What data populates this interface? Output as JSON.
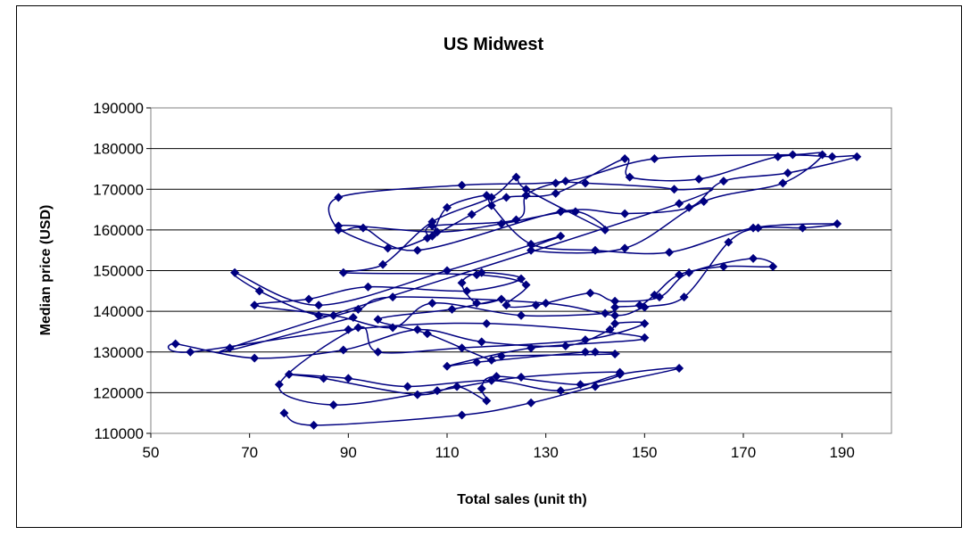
{
  "chart_data": {
    "type": "scatter",
    "title": "US Midwest",
    "xlabel": "Total sales (unit th)",
    "ylabel": "Median price (USD)",
    "xlim": [
      50,
      200
    ],
    "ylim": [
      110000,
      190000
    ],
    "x_ticks": [
      "50",
      "70",
      "90",
      "110",
      "130",
      "150",
      "170",
      "190"
    ],
    "y_ticks": [
      "110000",
      "120000",
      "130000",
      "140000",
      "150000",
      "160000",
      "170000",
      "180000",
      "190000"
    ],
    "grid": "horizontal",
    "legend": "none",
    "connected": true,
    "series": [
      {
        "color": "#000080",
        "marker": "diamond",
        "points": [
          [
            77,
            115000
          ],
          [
            83,
            112000
          ],
          [
            113,
            114500
          ],
          [
            127,
            117500
          ],
          [
            140,
            121500
          ],
          [
            157,
            126000
          ],
          [
            145,
            124500
          ],
          [
            133,
            120500
          ],
          [
            119,
            123000
          ],
          [
            102,
            121500
          ],
          [
            90,
            123500
          ],
          [
            78,
            124500
          ],
          [
            85,
            123500
          ],
          [
            104,
            119500
          ],
          [
            112,
            121500
          ],
          [
            118,
            118000
          ],
          [
            117,
            121000
          ],
          [
            120,
            124000
          ],
          [
            137,
            122000
          ],
          [
            145,
            125000
          ],
          [
            125,
            123800
          ],
          [
            108,
            120500
          ],
          [
            87,
            117000
          ],
          [
            76,
            122000
          ],
          [
            92,
            136000
          ],
          [
            96,
            130000
          ],
          [
            113,
            131000
          ],
          [
            138,
            133000
          ],
          [
            150,
            137000
          ],
          [
            144,
            137000
          ],
          [
            143,
            135500
          ],
          [
            134,
            131500
          ],
          [
            117,
            132500
          ],
          [
            104,
            135500
          ],
          [
            89,
            130500
          ],
          [
            71,
            128500
          ],
          [
            55,
            132000
          ],
          [
            58,
            130000
          ],
          [
            90,
            135500
          ],
          [
            118,
            137000
          ],
          [
            150,
            133500
          ],
          [
            127,
            131000
          ],
          [
            110,
            126500
          ],
          [
            116,
            127500
          ],
          [
            138,
            130000
          ],
          [
            140,
            130000
          ],
          [
            144,
            129500
          ],
          [
            121,
            129000
          ],
          [
            119,
            128000
          ],
          [
            106,
            134500
          ],
          [
            96,
            138000
          ],
          [
            111,
            140500
          ],
          [
            121,
            143000
          ],
          [
            116,
            142000
          ],
          [
            113,
            147000
          ],
          [
            117,
            149500
          ],
          [
            125,
            148000
          ],
          [
            114,
            145000
          ],
          [
            94,
            146000
          ],
          [
            82,
            143000
          ],
          [
            71,
            141500
          ],
          [
            87,
            139000
          ],
          [
            99,
            136000
          ],
          [
            107,
            142000
          ],
          [
            125,
            139000
          ],
          [
            142,
            139500
          ],
          [
            144,
            141000
          ],
          [
            149,
            141500
          ],
          [
            152,
            144000
          ],
          [
            157,
            149000
          ],
          [
            166,
            151000
          ],
          [
            176,
            151000
          ],
          [
            172,
            153000
          ],
          [
            159,
            149500
          ],
          [
            153,
            143500
          ],
          [
            144,
            142500
          ],
          [
            139,
            144500
          ],
          [
            128,
            141500
          ],
          [
            122,
            141500
          ],
          [
            126,
            146500
          ],
          [
            116,
            149000
          ],
          [
            89,
            149500
          ],
          [
            97,
            151500
          ],
          [
            107,
            162000
          ],
          [
            119,
            168000
          ],
          [
            124,
            173000
          ],
          [
            126,
            170000
          ],
          [
            142,
            160000
          ],
          [
            136,
            164500
          ],
          [
            121,
            161500
          ],
          [
            108,
            159500
          ],
          [
            88,
            161000
          ],
          [
            98,
            155500
          ],
          [
            106,
            158000
          ],
          [
            115,
            163800
          ],
          [
            122,
            168000
          ],
          [
            132,
            169000
          ],
          [
            146,
            177500
          ],
          [
            147,
            173000
          ],
          [
            161,
            172500
          ],
          [
            177,
            178000
          ],
          [
            188,
            178000
          ],
          [
            193,
            178000
          ],
          [
            179,
            174000
          ],
          [
            166,
            172000
          ],
          [
            159,
            165500
          ],
          [
            146,
            164000
          ],
          [
            133,
            164500
          ],
          [
            104,
            155000
          ],
          [
            93,
            160500
          ],
          [
            88,
            160000
          ],
          [
            88,
            168000
          ],
          [
            113,
            171000
          ],
          [
            134,
            172000
          ],
          [
            152,
            177500
          ],
          [
            180,
            178500
          ],
          [
            186,
            178500
          ],
          [
            178,
            171500
          ],
          [
            162,
            167000
          ],
          [
            146,
            155500
          ],
          [
            127,
            155000
          ],
          [
            133,
            158500
          ],
          [
            110,
            150000
          ],
          [
            84,
            141500
          ],
          [
            67,
            149500
          ],
          [
            72,
            145000
          ],
          [
            84,
            139000
          ],
          [
            92,
            140500
          ],
          [
            99,
            143500
          ],
          [
            130,
            142000
          ],
          [
            144,
            139000
          ],
          [
            150,
            141000
          ],
          [
            158,
            143500
          ],
          [
            167,
            157000
          ],
          [
            173,
            160500
          ],
          [
            182,
            160500
          ],
          [
            189,
            161500
          ],
          [
            172,
            160500
          ],
          [
            155,
            154500
          ],
          [
            140,
            155000
          ],
          [
            127,
            156500
          ],
          [
            119,
            166000
          ],
          [
            118,
            168500
          ],
          [
            110,
            165500
          ],
          [
            107,
            158500
          ],
          [
            107,
            161000
          ],
          [
            124,
            162500
          ],
          [
            126,
            168500
          ],
          [
            132,
            171500
          ],
          [
            138,
            171500
          ],
          [
            156,
            170000
          ],
          [
            157,
            166500
          ],
          [
            66,
            131000
          ],
          [
            91,
            138500
          ]
        ]
      }
    ]
  }
}
